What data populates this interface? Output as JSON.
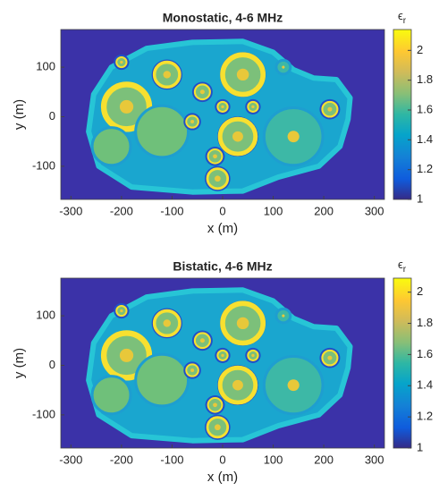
{
  "chart_data": [
    {
      "type": "image",
      "title": "Monostatic, 4-6 MHz",
      "xlabel": "x (m)",
      "ylabel": "y (m)",
      "xlim": [
        -320,
        320
      ],
      "ylim": [
        -167,
        176
      ],
      "xticks": [
        -300,
        -200,
        -100,
        0,
        100,
        200,
        300
      ],
      "yticks": [
        -100,
        0,
        100
      ],
      "colorbar": {
        "symbol": "ϵ",
        "subscript": "r",
        "clim": [
          1,
          2.14
        ],
        "ticks": [
          1,
          1.2,
          1.4,
          1.6,
          1.8,
          2
        ]
      }
    },
    {
      "type": "image",
      "title": "Bistatic, 4-6 MHz",
      "xlabel": "x (m)",
      "ylabel": "y (m)",
      "xlim": [
        -320,
        320
      ],
      "ylim": [
        -167,
        176
      ],
      "xticks": [
        -300,
        -200,
        -100,
        0,
        100,
        200,
        300
      ],
      "yticks": [
        -100,
        0,
        100
      ],
      "colorbar": {
        "symbol": "ϵ",
        "subscript": "r",
        "clim": [
          1,
          2.09
        ],
        "ticks": [
          1,
          1.2,
          1.4,
          1.6,
          1.8,
          2
        ]
      }
    }
  ]
}
